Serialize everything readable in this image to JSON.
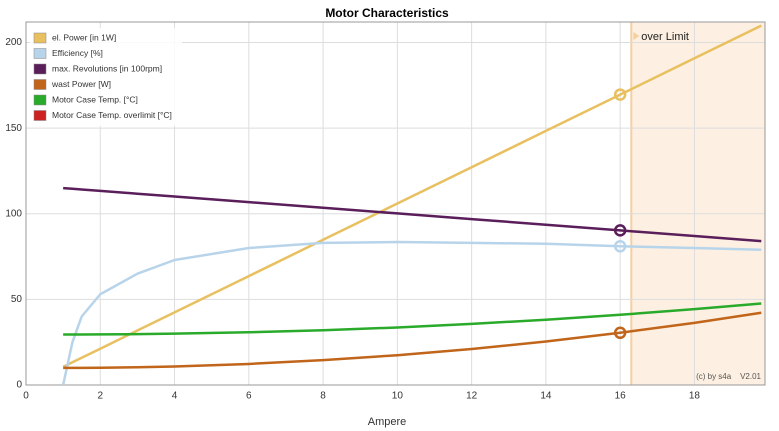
{
  "chart_data": {
    "type": "line",
    "title": "Motor Characteristics",
    "x_label": "Ampere",
    "x": [
      1,
      1.25,
      1.5,
      2,
      3,
      4,
      6,
      8,
      10,
      12,
      14,
      16,
      18,
      19.8
    ],
    "series": [
      {
        "name": "el. Power [in 1W]",
        "color": "#e8c060",
        "values": [
          10.6,
          13.3,
          15.9,
          21.2,
          31.8,
          42.4,
          63.6,
          84.8,
          106,
          127.2,
          148.4,
          169.6,
          190.8,
          209.9
        ]
      },
      {
        "name": "Efficiency [%]",
        "color": "#b8d4ea",
        "values": [
          0,
          25,
          40,
          53,
          65,
          73,
          80,
          83,
          83.5,
          83,
          82.5,
          81,
          80,
          79
        ]
      },
      {
        "name": "max. Revolutions [in 100rpm]",
        "color": "#5a1e5a",
        "values": [
          115,
          114.6,
          114.2,
          113.4,
          111.7,
          110.1,
          106.8,
          103.5,
          100.2,
          96.9,
          93.6,
          90.3,
          87,
          84
        ]
      },
      {
        "name": "wast Power [W]",
        "color": "#c0651a",
        "values": [
          10,
          10,
          10,
          10.1,
          10.4,
          10.8,
          12.3,
          14.5,
          17.4,
          21,
          25.4,
          30.5,
          36.3,
          42.2
        ]
      },
      {
        "name": "Motor Case Temp. [°C]",
        "color": "#2aaa2a",
        "values": [
          29.5,
          29.5,
          29.5,
          29.6,
          29.7,
          30,
          30.8,
          32,
          33.6,
          35.7,
          38.1,
          41,
          44.3,
          47.6
        ]
      },
      {
        "name": "Motor Case Temp. overlimit [°C]",
        "color": "#cc2222",
        "values": [
          null,
          null,
          null,
          null,
          null,
          null,
          null,
          null,
          null,
          null,
          null,
          null,
          null,
          null
        ]
      }
    ],
    "xlim": [
      0,
      19.9
    ],
    "ylim": [
      0,
      212
    ],
    "xticks": [
      0,
      2,
      4,
      6,
      8,
      10,
      12,
      14,
      16,
      18
    ],
    "yticks": [
      0,
      50,
      100,
      150,
      200
    ],
    "grid": true,
    "limit_x": 16.3,
    "limit_label": "over Limit",
    "highlight_index": 11,
    "credit": "(c) by s4a    V2.01"
  }
}
